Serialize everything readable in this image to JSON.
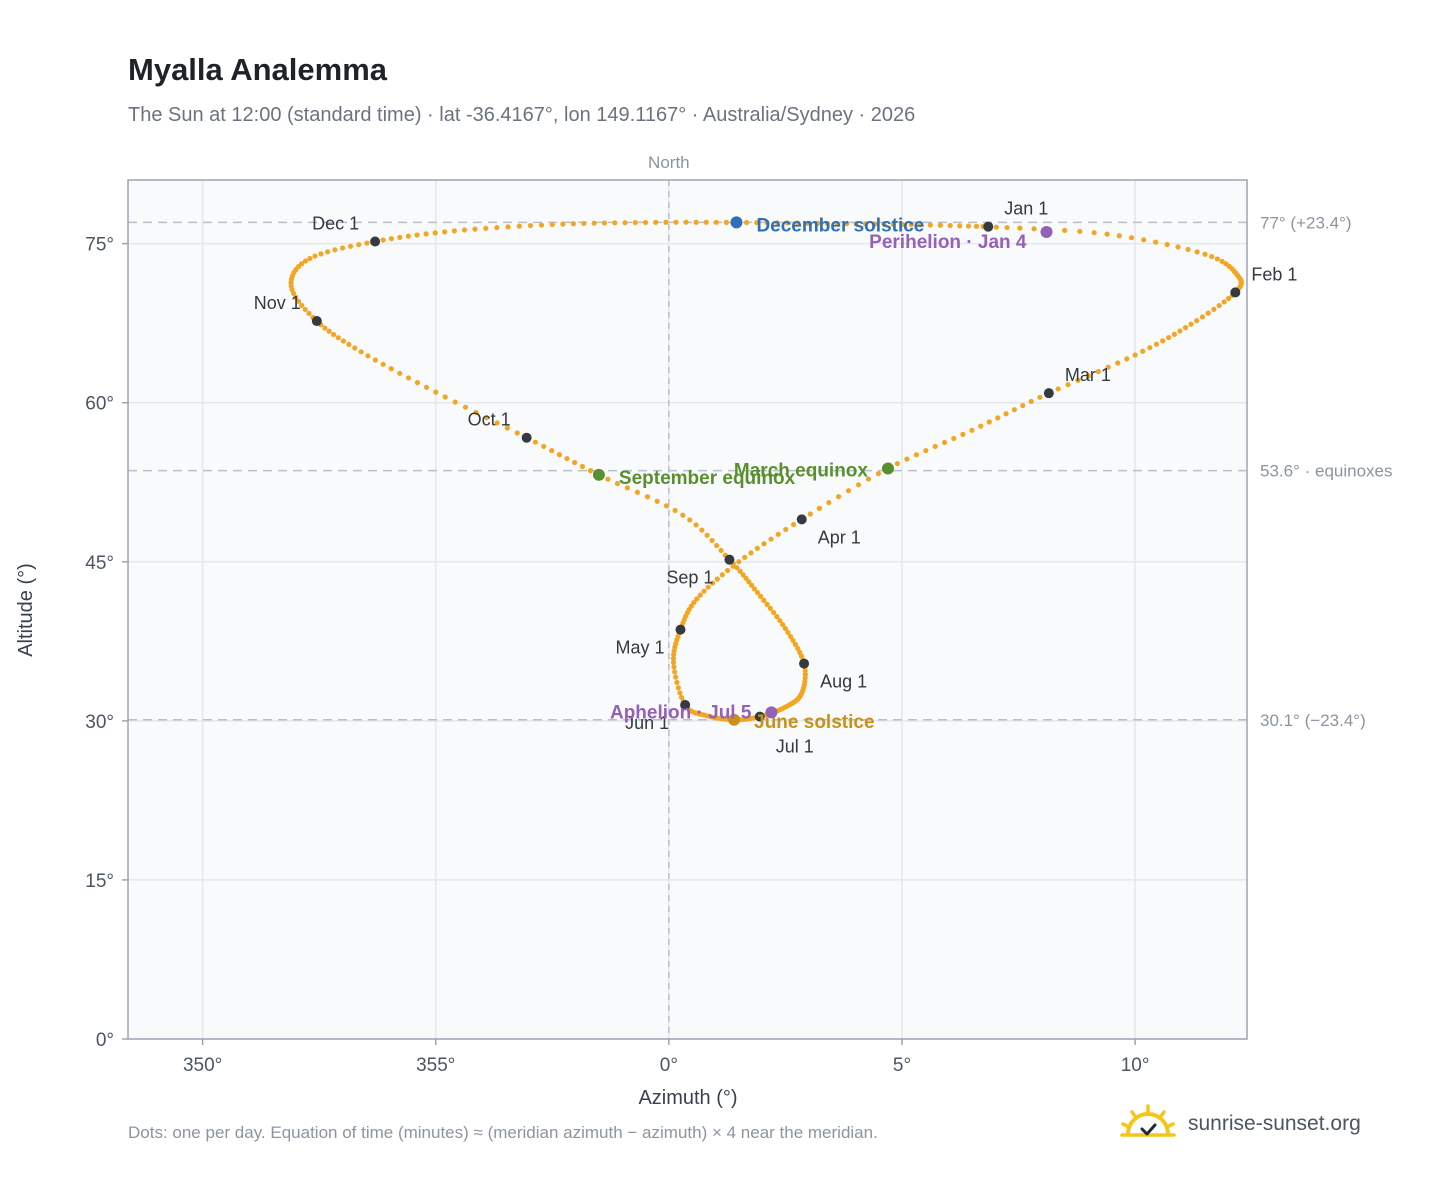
{
  "title": "Myalla Analemma",
  "subtitle": "The Sun at 12:00 (standard time) · lat -36.4167°, lon 149.1167° · Australia/Sydney · 2026",
  "footnote": "Dots: one per day. Equation of time (minutes) ≈ (meridian azimuth − azimuth) × 4 near the meridian.",
  "brand": {
    "text": "sunrise-sunset.org",
    "icon": "sun-logo-icon"
  },
  "colors": {
    "curve": "#f2a623",
    "month_marker": "#343a40",
    "december_solstice": "#2f6fb5",
    "june_solstice": "#c8921a",
    "equinox": "#5a8f2e",
    "apsis": "#9461b8",
    "plot_bg": "#f8fafc",
    "grid": "#e3e8ee",
    "reference_line": "#b7c0cb"
  },
  "chart_data": {
    "type": "scatter",
    "xlabel": "Azimuth (°)",
    "ylabel": "Altitude (°)",
    "xlim": [
      348.4,
      372.4
    ],
    "ylim": [
      0,
      81
    ],
    "x_ticks": [
      350,
      355,
      360,
      365,
      370
    ],
    "x_tick_labels": [
      "350°",
      "355°",
      "0°",
      "5°",
      "10°"
    ],
    "y_ticks": [
      0,
      15,
      30,
      45,
      60,
      75
    ],
    "y_tick_labels": [
      "0°",
      "15°",
      "30°",
      "45°",
      "60°",
      "75°"
    ],
    "grid": true,
    "north_line": {
      "x": 360,
      "label": "North"
    },
    "reference_lines": [
      {
        "y": 77.0,
        "label": "77° (+23.4°)"
      },
      {
        "y": 53.6,
        "label": "53.6° · equinoxes"
      },
      {
        "y": 30.1,
        "label": "30.1° (−23.4°)"
      }
    ],
    "month_markers": [
      {
        "label": "Jan 1",
        "x": 366.85,
        "y": 76.6
      },
      {
        "label": "Feb 1",
        "x": 372.15,
        "y": 70.4
      },
      {
        "label": "Mar 1",
        "x": 368.15,
        "y": 60.9
      },
      {
        "label": "Apr 1",
        "x": 362.85,
        "y": 49.0
      },
      {
        "label": "May 1",
        "x": 360.25,
        "y": 38.6
      },
      {
        "label": "Jun 1",
        "x": 360.35,
        "y": 31.5
      },
      {
        "label": "Jul 1",
        "x": 361.95,
        "y": 30.4
      },
      {
        "label": "Aug 1",
        "x": 362.9,
        "y": 35.4
      },
      {
        "label": "Sep 1",
        "x": 361.3,
        "y": 45.2
      },
      {
        "label": "Oct 1",
        "x": 356.95,
        "y": 56.7
      },
      {
        "label": "Nov 1",
        "x": 352.45,
        "y": 67.7
      },
      {
        "label": "Dec 1",
        "x": 353.7,
        "y": 75.2
      }
    ],
    "events": [
      {
        "label": "December solstice",
        "x": 361.45,
        "y": 77.0,
        "color": "#2f6fb5"
      },
      {
        "label": "Perihelion · Jan 4",
        "x": 368.1,
        "y": 76.1,
        "color": "#9461b8"
      },
      {
        "label": "March equinox",
        "x": 364.7,
        "y": 53.8,
        "color": "#5a8f2e"
      },
      {
        "label": "September equinox",
        "x": 358.5,
        "y": 53.2,
        "color": "#5a8f2e"
      },
      {
        "label": "June solstice",
        "x": 361.4,
        "y": 30.1,
        "color": "#c8921a"
      },
      {
        "label": "Aphelion · Jul 5",
        "x": 362.2,
        "y": 30.8,
        "color": "#9461b8"
      }
    ],
    "series": [
      {
        "x": [
          366.85,
          369.4,
          371.5,
          372.2,
          372.15,
          371.2,
          370.0,
          368.15,
          366.5,
          364.7,
          362.85,
          361.5,
          360.6,
          360.25,
          360.1,
          360.35,
          360.8,
          361.4,
          361.95,
          362.5,
          362.85,
          362.9,
          362.5,
          361.9,
          361.3,
          360.3,
          358.5,
          356.95,
          355.0,
          353.4,
          352.45,
          351.9,
          352.3,
          353.7,
          355.4,
          357.5,
          359.5,
          361.45,
          363.4,
          365.2,
          366.85
        ],
        "y": [
          76.6,
          75.9,
          74.0,
          72.0,
          70.4,
          67.4,
          64.5,
          60.9,
          57.4,
          53.8,
          49.0,
          45.0,
          41.5,
          38.6,
          35.5,
          31.5,
          30.5,
          30.1,
          30.4,
          31.3,
          32.6,
          35.4,
          38.7,
          42.1,
          45.2,
          49.4,
          53.2,
          56.7,
          61.0,
          64.8,
          67.7,
          71.0,
          73.6,
          75.2,
          76.2,
          76.8,
          77.0,
          77.0,
          76.9,
          76.8,
          76.6
        ]
      }
    ]
  }
}
